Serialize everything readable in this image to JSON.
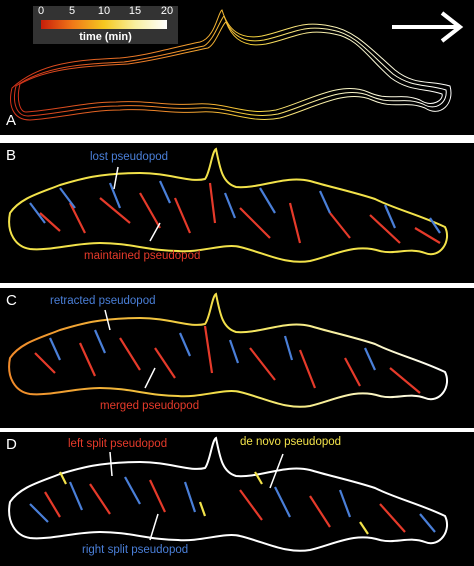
{
  "panels": [
    {
      "letter": "A"
    },
    {
      "letter": "B",
      "ann_top": "lost pseudopod",
      "ann_bottom": "maintained pseudopod"
    },
    {
      "letter": "C",
      "ann_top": "retracted pseudopod",
      "ann_bottom": "merged pseudopod"
    },
    {
      "letter": "D",
      "ann_top_left": "left split pseudopod",
      "ann_top_right": "de novo pseudopod",
      "ann_bottom": "right split pseudopod"
    }
  ],
  "colorbar": {
    "ticks": [
      "0",
      "5",
      "10",
      "15",
      "20"
    ],
    "title": "time (min)"
  },
  "colors": {
    "blue": "#4a7fd8",
    "red": "#e53a2a",
    "yellow": "#f2e24a",
    "orange": "#f08a2a",
    "white": "#ffffff"
  }
}
